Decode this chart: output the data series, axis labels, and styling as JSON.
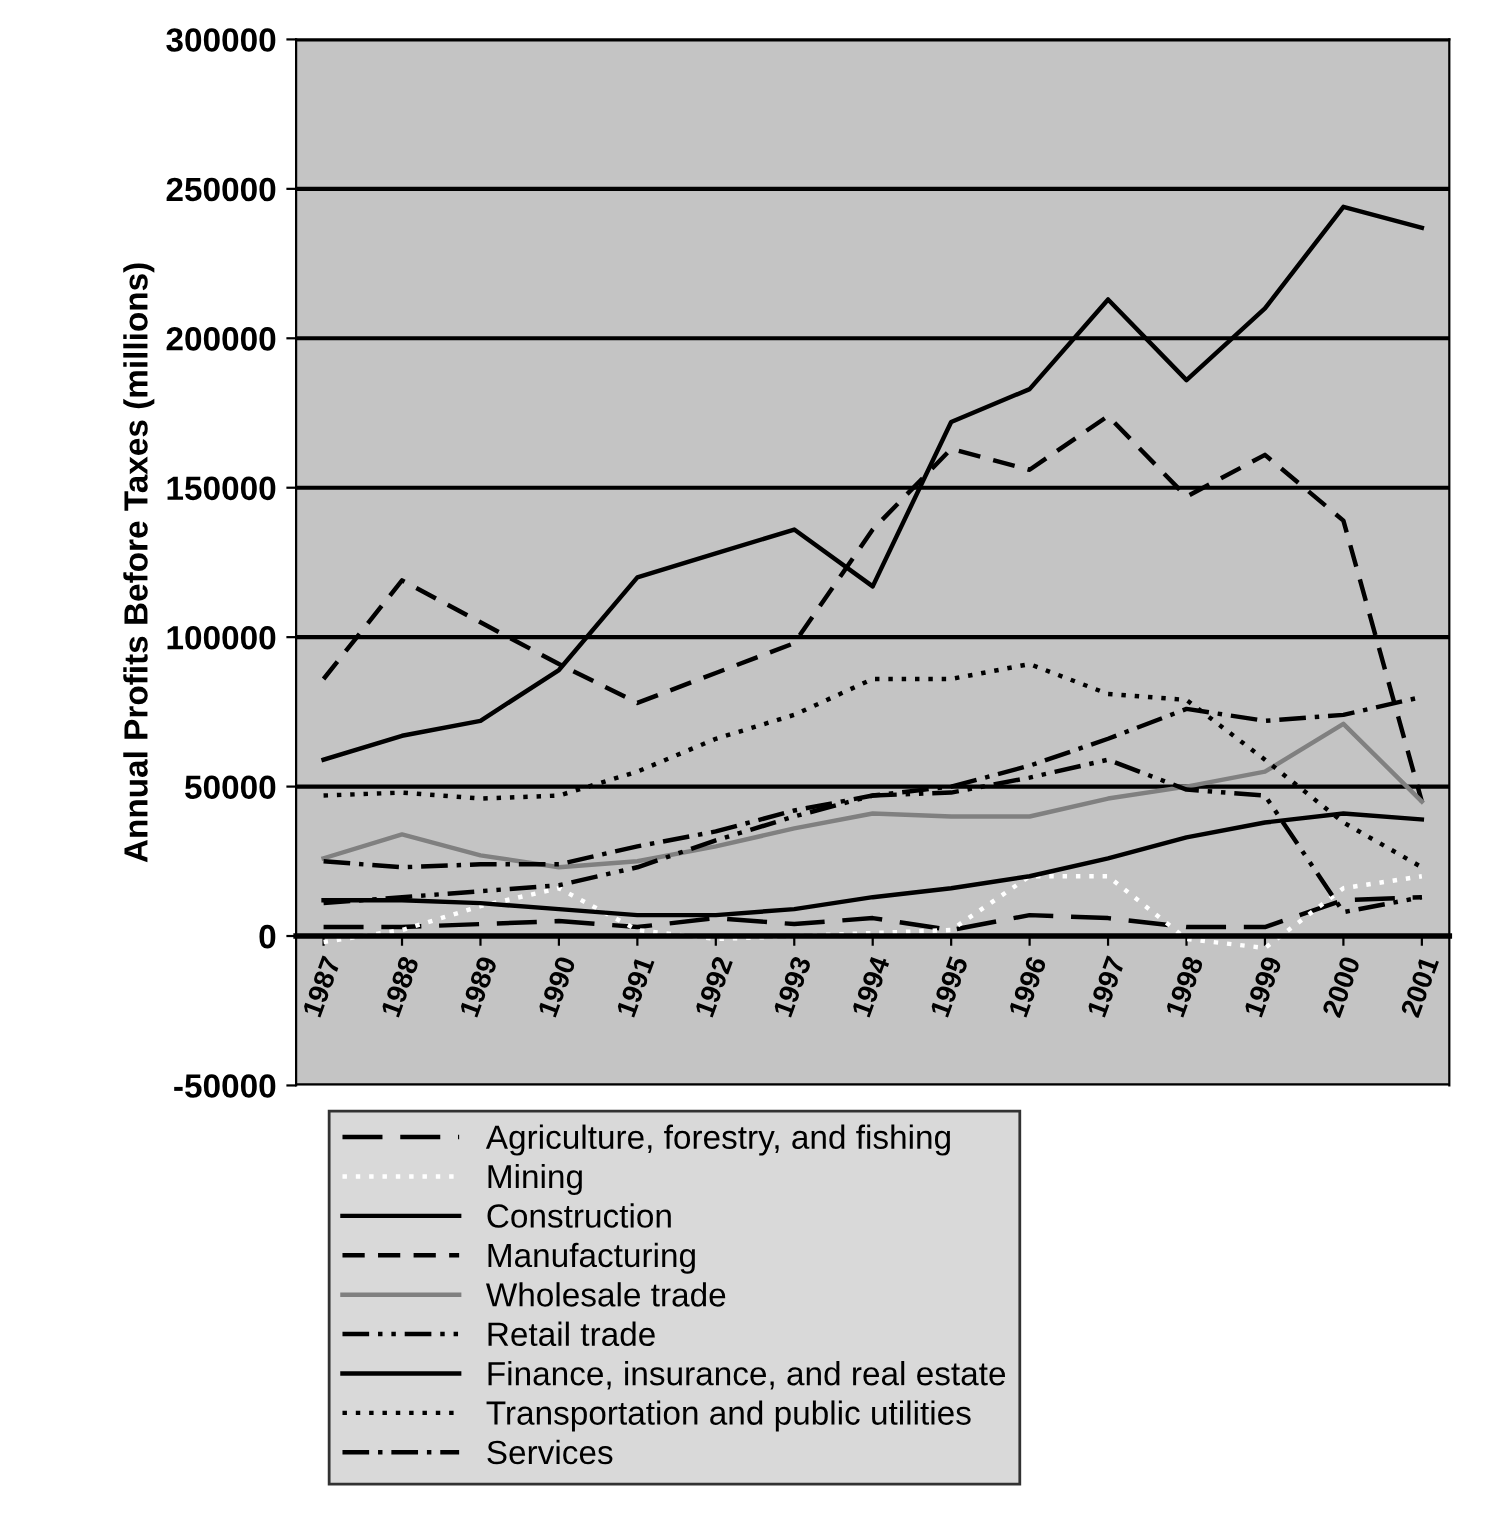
{
  "chart_data": {
    "type": "line",
    "ylabel": "Annual Profits Before Taxes (millions)",
    "categories": [
      "1987",
      "1988",
      "1989",
      "1990",
      "1991",
      "1992",
      "1993",
      "1994",
      "1995",
      "1996",
      "1997",
      "1998",
      "1999",
      "2000",
      "2001"
    ],
    "series": [
      {
        "name": "Agriculture, forestry, and fishing",
        "color": "#000000",
        "line_style": "longdash",
        "values": [
          3000,
          3000,
          4000,
          5000,
          3000,
          6000,
          4000,
          6000,
          2000,
          7000,
          6000,
          3000,
          3000,
          12000,
          13000
        ]
      },
      {
        "name": "Mining",
        "color": "#ffffff",
        "line_style": "dotted",
        "values": [
          -2000,
          2000,
          10000,
          16000,
          2000,
          -1000,
          0,
          1000,
          2000,
          20000,
          20000,
          -1000,
          -4000,
          16000,
          20000
        ]
      },
      {
        "name": "Construction",
        "color": "#000000",
        "line_style": "solid",
        "values": [
          12000,
          12000,
          11000,
          9000,
          7000,
          7000,
          9000,
          13000,
          16000,
          20000,
          26000,
          33000,
          38000,
          41000,
          39000
        ]
      },
      {
        "name": "Manufacturing",
        "color": "#000000",
        "line_style": "dashed",
        "values": [
          86000,
          119000,
          105000,
          91000,
          78000,
          88000,
          98000,
          136000,
          163000,
          156000,
          174000,
          147000,
          161000,
          139000,
          45000
        ]
      },
      {
        "name": "Wholesale trade",
        "color": "#808080",
        "line_style": "solid",
        "values": [
          26000,
          34000,
          27000,
          23000,
          25000,
          30000,
          36000,
          41000,
          40000,
          40000,
          46000,
          50000,
          55000,
          71000,
          45000
        ]
      },
      {
        "name": "Retail trade",
        "color": "#000000",
        "line_style": "dashdotdot",
        "values": [
          11000,
          13000,
          15000,
          17000,
          23000,
          32000,
          40000,
          47000,
          48000,
          53000,
          59000,
          49000,
          47000,
          8000,
          13000
        ]
      },
      {
        "name": "Finance, insurance, and real estate",
        "color": "#000000",
        "line_style": "solid",
        "values": [
          59000,
          67000,
          72000,
          89000,
          120000,
          128000,
          136000,
          117000,
          172000,
          183000,
          213000,
          186000,
          210000,
          244000,
          237000
        ]
      },
      {
        "name": "Transportation and public utilities",
        "color": "#000000",
        "line_style": "dotted",
        "values": [
          47000,
          48000,
          46000,
          47000,
          55000,
          66000,
          74000,
          86000,
          86000,
          91000,
          81000,
          79000,
          59000,
          38000,
          23000
        ]
      },
      {
        "name": "Services",
        "color": "#000000",
        "line_style": "dashdot",
        "values": [
          25000,
          23000,
          24000,
          24000,
          30000,
          35000,
          42000,
          47000,
          50000,
          57000,
          66000,
          76000,
          72000,
          74000,
          80000
        ]
      }
    ],
    "ylim": [
      -50000,
      300000
    ],
    "yticks": [
      -50000,
      0,
      50000,
      100000,
      150000,
      200000,
      250000,
      300000
    ],
    "grid": "y",
    "legend": "bottom",
    "marker": "none"
  }
}
